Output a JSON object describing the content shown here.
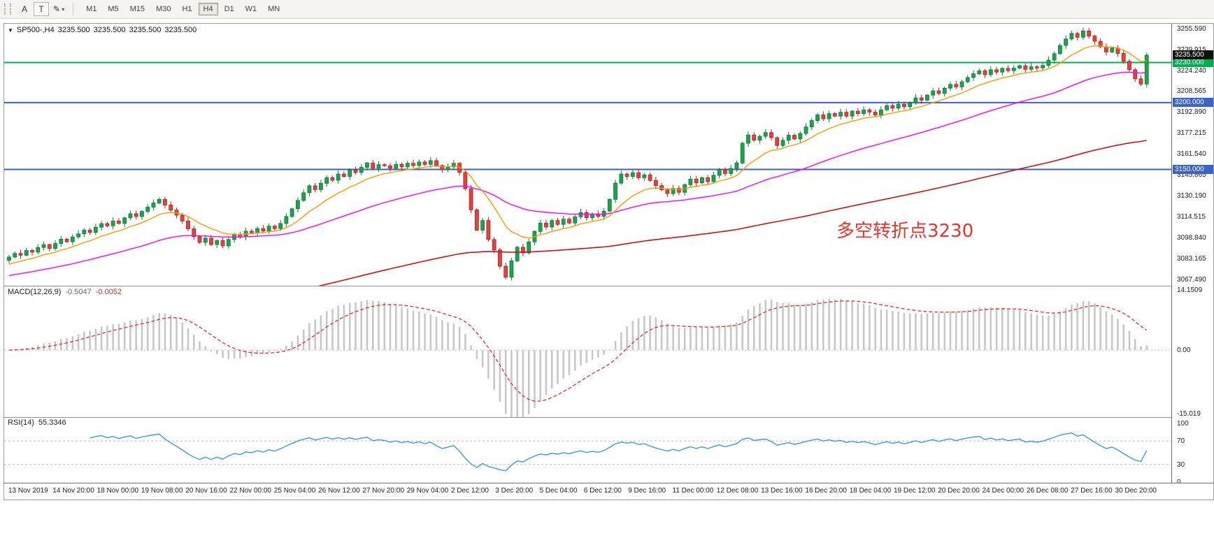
{
  "toolbar": {
    "cursor_label": "A",
    "text_label": "T",
    "pencil_icon": "✎",
    "caret_icon": "▾",
    "timeframes": [
      "M1",
      "M5",
      "M15",
      "M30",
      "H1",
      "H4",
      "D1",
      "W1",
      "MN"
    ],
    "active_timeframe": "H4"
  },
  "chart": {
    "header": {
      "dropdown": "▼",
      "symbol": "SP500-,H4",
      "open": "3235.500",
      "high": "3235.500",
      "low": "3235.500",
      "close": "3235.500"
    },
    "annotation": "多空转折点3230",
    "price_scale_labels": [
      "3255.590",
      "3239.915",
      "3224.240",
      "3208.565",
      "3192.890",
      "3177.215",
      "3161.540",
      "3145.865",
      "3130.190",
      "3114.515",
      "3098.840",
      "3083.165",
      "3067.490"
    ],
    "price_tags": [
      {
        "name": "current-price-tag",
        "label": "3235.500",
        "value": 3235.5,
        "bg": "#111111"
      },
      {
        "name": "hline-tag-3230",
        "label": "3230.000",
        "value": 3230.0,
        "bg": "#00b050"
      },
      {
        "name": "hline-tag-3200",
        "label": "3200.000",
        "value": 3200.0,
        "bg": "#3a62c8"
      },
      {
        "name": "hline-tag-3150",
        "label": "3150.000",
        "value": 3150.0,
        "bg": "#3a62c8"
      }
    ],
    "macd": {
      "label": "MACD(12,26,9)",
      "value_main": "-0.5047",
      "value_signal": "-0.0052",
      "scale_labels": [
        "14.1509",
        "0.00",
        "-15.019"
      ]
    },
    "rsi": {
      "label": "RSI(14)",
      "value": "55.3346",
      "scale_labels": [
        "100",
        "70",
        "30",
        "0"
      ]
    },
    "time_labels": [
      "13 Nov 2019",
      "14 Nov 20:00",
      "18 Nov 00:00",
      "19 Nov 08:00",
      "20 Nov 16:00",
      "22 Nov 00:00",
      "25 Nov 04:00",
      "26 Nov 12:00",
      "27 Nov 20:00",
      "29 Nov 04:00",
      "2 Dec 12:00",
      "3 Dec 20:00",
      "5 Dec 04:00",
      "6 Dec 12:00",
      "9 Dec 16:00",
      "11 Dec 00:00",
      "12 Dec 08:00",
      "13 Dec 16:00",
      "16 Dec 20:00",
      "18 Dec 04:00",
      "19 Dec 12:00",
      "20 Dec 20:00",
      "24 Dec 00:00",
      "26 Dec 08:00",
      "27 Dec 16:00",
      "30 Dec 20:00"
    ]
  },
  "colors": {
    "up": "#1fa24e",
    "up_stroke": "#0e7a38",
    "down": "#e04440",
    "down_stroke": "#a82420",
    "ma_fast": "#ff9900",
    "ma_medium": "#ff00ff",
    "ma_slow": "#cc1111",
    "hline_green": "#00b050",
    "hline_blue": "#3a62c8",
    "macd_hist": "#c6c6c6",
    "macd_signal": "#e03030",
    "rsi_line": "#3e9bd6",
    "level_dash": "#bcbcbc",
    "annotation": "#e8352e"
  },
  "chart_data": {
    "type": "candlestick",
    "symbol": "SP500-",
    "timeframe": "H4",
    "title": "SP500-,H4",
    "ylim": [
      3063.0,
      3259.0
    ],
    "current_price": 3235.5,
    "first_open": 3082.0,
    "hlines": [
      {
        "value": 3230.0,
        "color_key": "hline_green",
        "width": 2
      },
      {
        "value": 3200.0,
        "color_key": "hline_blue",
        "width": 2
      },
      {
        "value": 3150.0,
        "color_key": "hline_blue",
        "width": 2
      }
    ],
    "closes": [
      3084.5,
      3087.2,
      3085.8,
      3089.4,
      3088.1,
      3091.6,
      3093.8,
      3090.9,
      3094.6,
      3097.8,
      3095.9,
      3099.5,
      3101.8,
      3104.6,
      3102.9,
      3106.8,
      3109.5,
      3107.8,
      3111.4,
      3109.6,
      3113.8,
      3116.9,
      3114.8,
      3118.6,
      3121.8,
      3124.9,
      3127.6,
      3123.4,
      3119.6,
      3115.8,
      3111.4,
      3105.6,
      3099.8,
      3095.4,
      3098.6,
      3093.8,
      3096.9,
      3092.8,
      3097.6,
      3101.4,
      3099.6,
      3103.8,
      3102.6,
      3105.8,
      3103.9,
      3107.6,
      3105.8,
      3109.6,
      3114.8,
      3120.6,
      3126.8,
      3132.6,
      3137.8,
      3134.9,
      3139.6,
      3143.8,
      3141.9,
      3146.6,
      3144.8,
      3149.6,
      3147.8,
      3151.6,
      3154.8,
      3150.9,
      3153.6,
      3152.8,
      3150.9,
      3153.8,
      3151.9,
      3154.6,
      3152.9,
      3155.6,
      3153.8,
      3156.6,
      3152.9,
      3149.8,
      3151.9,
      3154.6,
      3147.8,
      3135.6,
      3119.8,
      3104.6,
      3111.8,
      3097.6,
      3089.8,
      3077.6,
      3069.4,
      3081.6,
      3091.8,
      3087.6,
      3095.8,
      3103.6,
      3109.8,
      3106.9,
      3111.8,
      3108.9,
      3112.8,
      3109.9,
      3114.6,
      3117.8,
      3113.9,
      3116.8,
      3114.9,
      3118.8,
      3127.6,
      3139.8,
      3146.6,
      3144.8,
      3147.6,
      3143.8,
      3145.9,
      3141.8,
      3137.9,
      3134.8,
      3131.9,
      3135.8,
      3132.9,
      3138.6,
      3142.8,
      3139.9,
      3143.8,
      3140.9,
      3145.6,
      3149.8,
      3146.9,
      3150.8,
      3154.8,
      3169.6,
      3175.8,
      3171.9,
      3174.8,
      3177.6,
      3173.8,
      3167.9,
      3171.8,
      3175.6,
      3172.8,
      3176.9,
      3181.8,
      3186.6,
      3190.8,
      3187.9,
      3191.8,
      3189.9,
      3192.8,
      3189.9,
      3193.6,
      3191.8,
      3194.6,
      3192.9,
      3190.8,
      3194.6,
      3197.8,
      3195.9,
      3198.8,
      3196.9,
      3199.8,
      3203.6,
      3201.8,
      3205.6,
      3208.8,
      3206.9,
      3210.8,
      3213.6,
      3211.8,
      3215.6,
      3218.8,
      3221.6,
      3223.8,
      3220.9,
      3224.6,
      3222.8,
      3225.6,
      3223.9,
      3225.8,
      3227.6,
      3224.9,
      3226.8,
      3225.9,
      3227.8,
      3231.8,
      3236.6,
      3242.8,
      3247.6,
      3251.8,
      3248.9,
      3253.6,
      3249.8,
      3245.9,
      3241.8,
      3237.9,
      3240.8,
      3236.8,
      3230.9,
      3224.6,
      3217.8,
      3213.9,
      3235.5
    ],
    "moving_averages": [
      {
        "name": "fast",
        "color_key": "ma_fast"
      },
      {
        "name": "medium",
        "color_key": "ma_medium"
      },
      {
        "name": "slow",
        "color_key": "ma_slow"
      }
    ],
    "macd_ylim": [
      -15.8,
      15.0
    ],
    "rsi_levels": [
      70,
      30
    ],
    "rsi_ylim": [
      0,
      100
    ]
  }
}
